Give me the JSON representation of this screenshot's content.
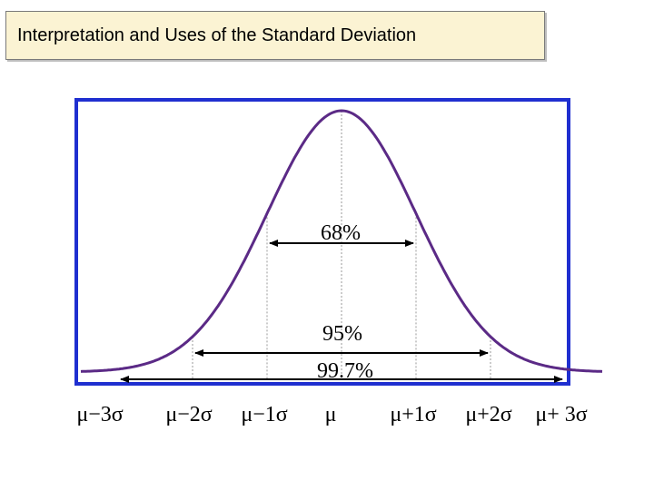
{
  "title": "Interpretation and Uses of the Standard Deviation",
  "colors": {
    "title_background": "#fbf3d3",
    "frame": "#1f2fd0",
    "curve": "#5b2a86",
    "dotted": "#9a9a9a",
    "arrow": "#000000"
  },
  "chart_data": {
    "type": "normal-distribution",
    "x_range_sigma": [
      -3.5,
      3.5
    ],
    "axis_labels": [
      {
        "sigma": -3,
        "label": "μ−3σ"
      },
      {
        "sigma": -2,
        "label": "μ−2σ"
      },
      {
        "sigma": -1,
        "label": "μ−1σ"
      },
      {
        "sigma": 0,
        "label": "μ"
      },
      {
        "sigma": 1,
        "label": "μ+1σ"
      },
      {
        "sigma": 2,
        "label": "μ+2σ"
      },
      {
        "sigma": 3,
        "label": "μ+ 3σ"
      }
    ],
    "intervals": [
      {
        "k": 1,
        "label": "68%"
      },
      {
        "k": 2,
        "label": "95%"
      },
      {
        "k": 3,
        "label": "99.7%"
      }
    ]
  }
}
